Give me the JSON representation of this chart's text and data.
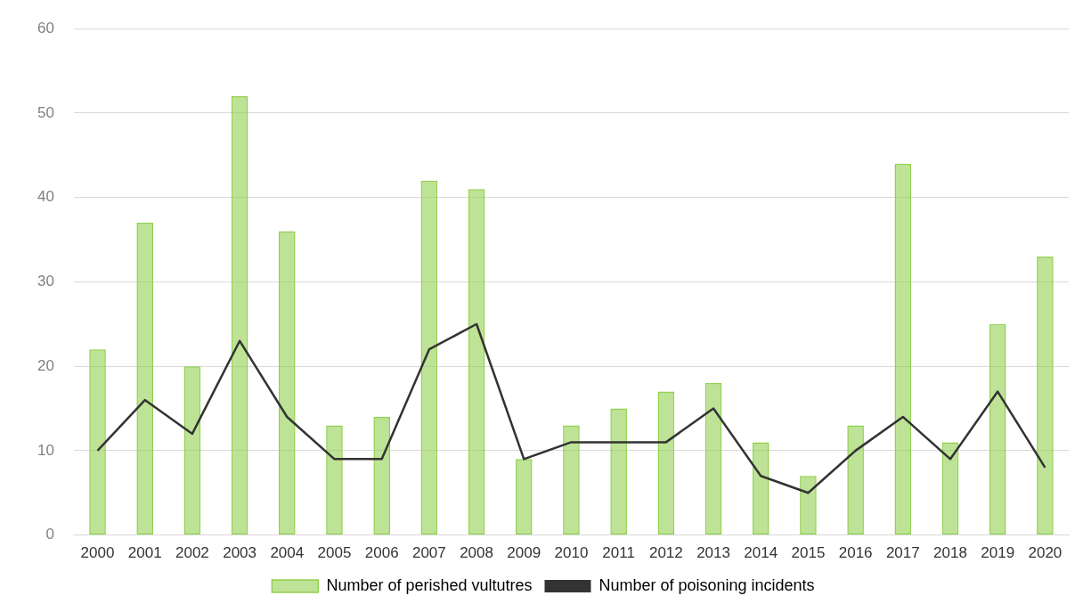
{
  "chart_data": {
    "type": "bar",
    "categories": [
      "2000",
      "2001",
      "2002",
      "2003",
      "2004",
      "2005",
      "2006",
      "2007",
      "2008",
      "2009",
      "2010",
      "2011",
      "2012",
      "2013",
      "2014",
      "2015",
      "2016",
      "2017",
      "2018",
      "2019",
      "2020"
    ],
    "series": [
      {
        "name": "Number of perished vultutres",
        "color": "#92d050",
        "values": [
          22,
          37,
          20,
          52,
          36,
          13,
          14,
          42,
          41,
          9,
          13,
          15,
          17,
          18,
          11,
          7,
          13,
          44,
          11,
          25,
          33
        ]
      },
      {
        "name": "Number of poisoning incidents",
        "type": "line",
        "color": "#333333",
        "values": [
          10,
          16,
          12,
          23,
          14,
          9,
          9,
          22,
          25,
          9,
          11,
          11,
          11,
          15,
          7,
          5,
          10,
          14,
          9,
          17,
          8
        ]
      }
    ],
    "ylim": [
      0,
      60
    ],
    "yticks": [
      0,
      10,
      20,
      30,
      40,
      50,
      60
    ],
    "grid": "y",
    "legend": "bottom",
    "marker": "none"
  }
}
